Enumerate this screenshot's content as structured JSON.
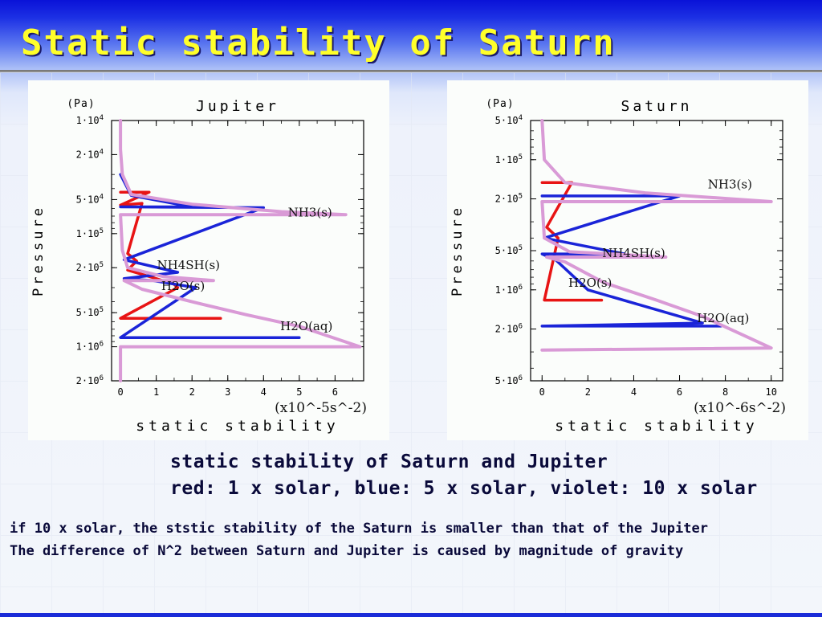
{
  "slide": {
    "title": "Static stability of Saturn",
    "caption_line1": "static stability of Saturn and Jupiter",
    "caption_line2": "red: 1 x solar,  blue: 5 x solar,  violet: 10 x solar",
    "note_line1": "if 10 x solar, the ststic stability of the Saturn is smaller than that of the Jupiter",
    "note_line2": "The difference of N^2 between Saturn and Jupiter is caused by magnitude of gravity"
  },
  "colors": {
    "red": "#e81414",
    "blue": "#1a24d8",
    "violet": "#d99ad6",
    "title": "#ffff2a"
  },
  "chart_data": [
    {
      "type": "line",
      "title": "Jupiter",
      "xlabel": "static stability",
      "ylabel": "Pressure",
      "y_unit_label": "(Pa)",
      "x_unit_label": "(x10^-5s^-2)",
      "xlim": [
        -0.25,
        6.8
      ],
      "ylim": [
        10000.0,
        2000000.0
      ],
      "y_scale": "log",
      "y_reversed": true,
      "x_ticks": [
        "0",
        "1",
        "2",
        "3",
        "4",
        "5",
        "6"
      ],
      "y_ticks": [
        {
          "value": 10000.0,
          "base": "1·10",
          "exp": "4"
        },
        {
          "value": 20000.0,
          "base": "2·10",
          "exp": "4"
        },
        {
          "value": 50000.0,
          "base": "5·10",
          "exp": "4"
        },
        {
          "value": 100000.0,
          "base": "1·10",
          "exp": "5"
        },
        {
          "value": 200000.0,
          "base": "2·10",
          "exp": "5"
        },
        {
          "value": 500000.0,
          "base": "5·10",
          "exp": "5"
        },
        {
          "value": 1000000.0,
          "base": "1·10",
          "exp": "6"
        },
        {
          "value": 2000000.0,
          "base": "2·10",
          "exp": "6"
        }
      ],
      "annotations": [
        {
          "text": "NH3(s)",
          "x": 5.3,
          "y": 65000.0
        },
        {
          "text": "NH4SH(s)",
          "x": 1.9,
          "y": 190000.0
        },
        {
          "text": "H2O(s)",
          "x": 1.75,
          "y": 290000.0
        },
        {
          "text": "H2O(aq)",
          "x": 5.2,
          "y": 660000.0
        }
      ],
      "series": [
        {
          "name": "1 x solar",
          "color": "red",
          "points": [
            [
              0,
              43000.0
            ],
            [
              0.8,
              43000.0
            ],
            [
              0,
              56000.0
            ],
            [
              0.6,
              54000.0
            ],
            [
              0.2,
              150000.0
            ],
            [
              0.45,
              175000.0
            ],
            [
              0.2,
              210000.0
            ],
            [
              1.0,
              250000.0
            ],
            [
              1.5,
              280000.0
            ],
            [
              1.6,
              300000.0
            ],
            [
              0,
              560000.0
            ],
            [
              2.8,
              560000.0
            ]
          ]
        },
        {
          "name": "5 x solar",
          "color": "blue",
          "points": [
            [
              0,
              30000.0
            ],
            [
              0.3,
              46000.0
            ],
            [
              2.0,
              58000.0
            ],
            [
              0,
              58000.0
            ],
            [
              4.0,
              59000.0
            ],
            [
              0.1,
              170000.0
            ],
            [
              1.6,
              220000.0
            ],
            [
              0.1,
              250000.0
            ],
            [
              0.9,
              260000.0
            ],
            [
              2.1,
              300000.0
            ],
            [
              0,
              830000.0
            ],
            [
              5.0,
              830000.0
            ]
          ]
        },
        {
          "name": "10 x solar",
          "color": "violet",
          "points": [
            [
              0,
              10000.0
            ],
            [
              0,
              18000.0
            ],
            [
              0.05,
              30000.0
            ],
            [
              0.3,
              45000.0
            ],
            [
              2.0,
              55000.0
            ],
            [
              4.5,
              64000.0
            ],
            [
              6.3,
              68000.0
            ],
            [
              0,
              68000.0
            ],
            [
              0.05,
              140000.0
            ],
            [
              0.2,
              200000.0
            ],
            [
              1.2,
              240000.0
            ],
            [
              2.6,
              260000.0
            ],
            [
              0.1,
              260000.0
            ],
            [
              0.6,
              310000.0
            ],
            [
              2.0,
              400000.0
            ],
            [
              3.5,
              520000.0
            ],
            [
              5.0,
              660000.0
            ],
            [
              6.7,
              1000000.0
            ],
            [
              0,
              1000000.0
            ],
            [
              0,
              2000000.0
            ]
          ]
        }
      ]
    },
    {
      "type": "line",
      "title": "Saturn",
      "xlabel": "static stability",
      "ylabel": "Pressure",
      "y_unit_label": "(Pa)",
      "x_unit_label": "(x10^-6s^-2)",
      "xlim": [
        -0.5,
        10.5
      ],
      "ylim": [
        50000.0,
        5000000.0
      ],
      "y_scale": "log",
      "y_reversed": true,
      "x_ticks": [
        "0",
        "2",
        "4",
        "6",
        "8",
        "10"
      ],
      "y_ticks": [
        {
          "value": 50000.0,
          "base": "5·10",
          "exp": "4"
        },
        {
          "value": 100000.0,
          "base": "1·10",
          "exp": "5"
        },
        {
          "value": 200000.0,
          "base": "2·10",
          "exp": "5"
        },
        {
          "value": 500000.0,
          "base": "5·10",
          "exp": "5"
        },
        {
          "value": 1000000.0,
          "base": "1·10",
          "exp": "6"
        },
        {
          "value": 2000000.0,
          "base": "2·10",
          "exp": "6"
        },
        {
          "value": 5000000.0,
          "base": "5·10",
          "exp": "6"
        }
      ],
      "annotations": [
        {
          "text": "NH3(s)",
          "x": 8.2,
          "y": 155000.0
        },
        {
          "text": "NH4SH(s)",
          "x": 4.0,
          "y": 520000.0
        },
        {
          "text": "H2O(s)",
          "x": 2.1,
          "y": 880000.0
        },
        {
          "text": "H2O(aq)",
          "x": 7.9,
          "y": 1650000.0
        }
      ],
      "series": [
        {
          "name": "1 x solar",
          "color": "red",
          "points": [
            [
              0,
              150000.0
            ],
            [
              1.3,
              150000.0
            ],
            [
              0.2,
              330000.0
            ],
            [
              0.7,
              400000.0
            ],
            [
              0.1,
              1200000.0
            ],
            [
              2.6,
              1200000.0
            ]
          ]
        },
        {
          "name": "5 x solar",
          "color": "blue",
          "points": [
            [
              0,
              190000.0
            ],
            [
              6.0,
              190000.0
            ],
            [
              0.1,
              400000.0
            ],
            [
              3.6,
              530000.0
            ],
            [
              0,
              530000.0
            ],
            [
              0.6,
              590000.0
            ],
            [
              2.0,
              1000000.0
            ],
            [
              7.0,
              1800000.0
            ],
            [
              0,
              1900000.0
            ],
            [
              7.8,
              1900000.0
            ]
          ]
        },
        {
          "name": "10 x solar",
          "color": "violet",
          "points": [
            [
              0,
              50000.0
            ],
            [
              0.1,
              100000.0
            ],
            [
              1.0,
              150000.0
            ],
            [
              4.5,
              180000.0
            ],
            [
              10,
              210000.0
            ],
            [
              0,
              210000.0
            ],
            [
              0.1,
              400000.0
            ],
            [
              1.2,
              510000.0
            ],
            [
              3.0,
              530000.0
            ],
            [
              5.4,
              560000.0
            ],
            [
              0.2,
              560000.0
            ],
            [
              1.0,
              610000.0
            ],
            [
              2.7,
              880000.0
            ],
            [
              5.0,
              1200000.0
            ],
            [
              7.0,
              1600000.0
            ],
            [
              10,
              2800000.0
            ],
            [
              0,
              2900000.0
            ]
          ]
        }
      ]
    }
  ]
}
